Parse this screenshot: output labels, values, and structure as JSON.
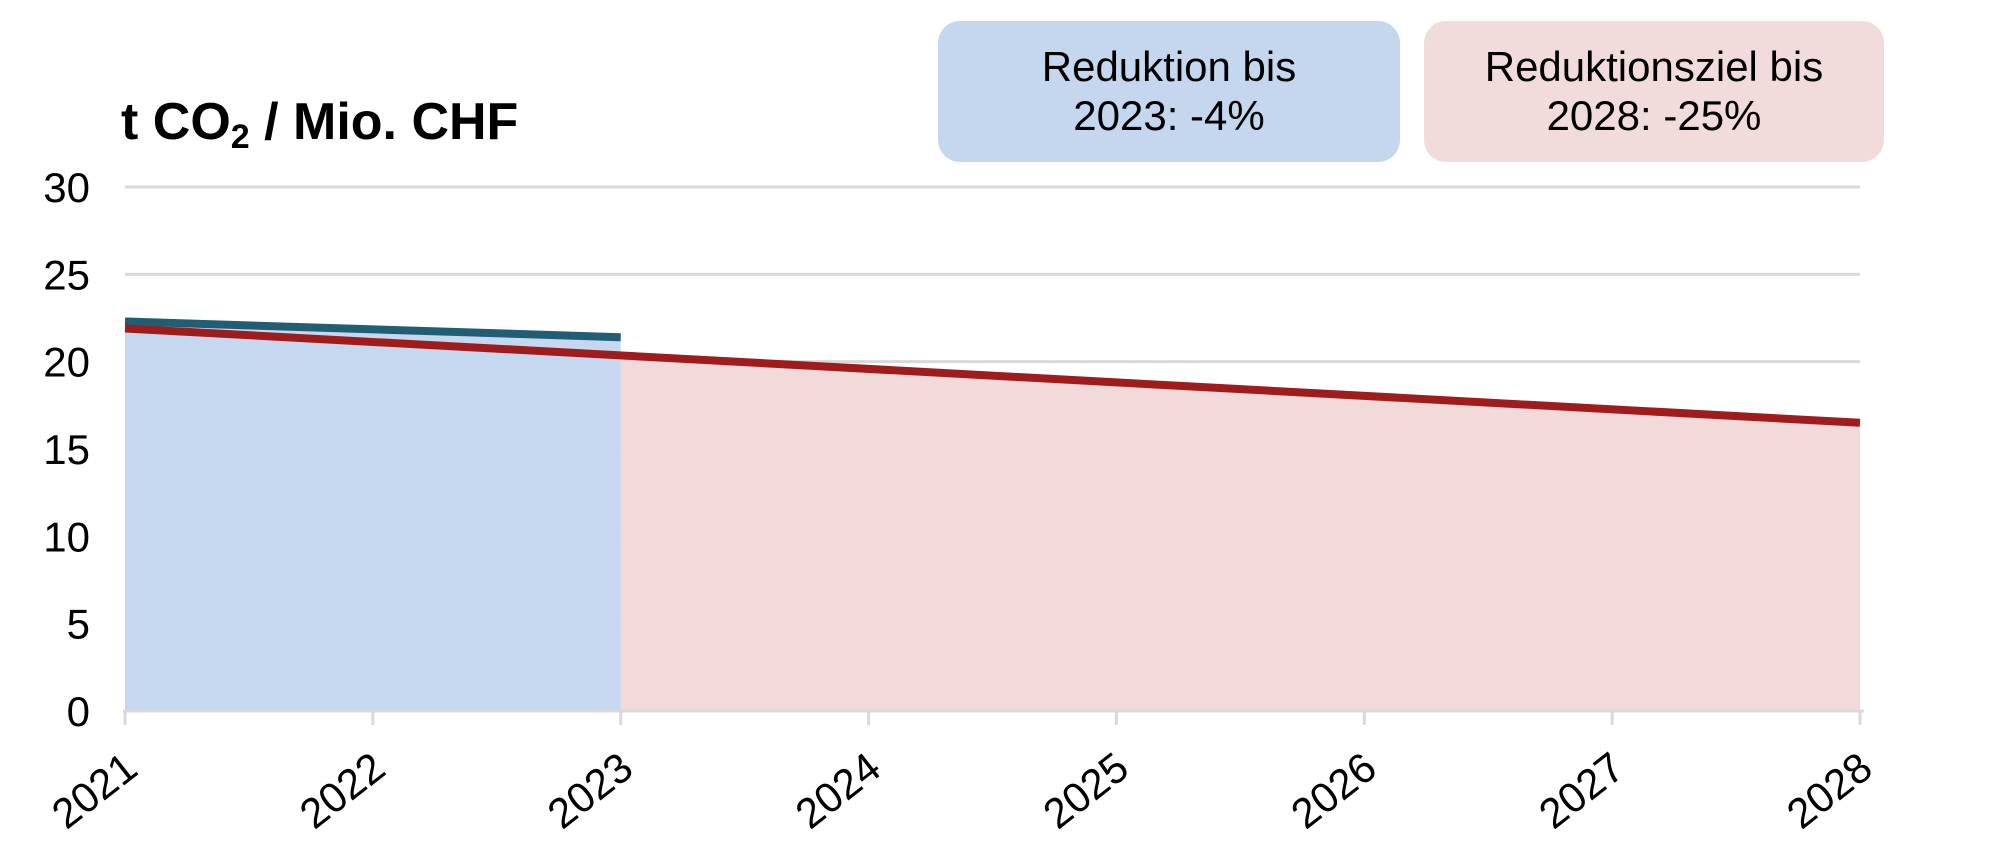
{
  "page": {
    "background": "#ffffff"
  },
  "title": {
    "text_main": "t CO",
    "subscript": "2",
    "text_rest": " / Mio. CHF"
  },
  "badges": [
    {
      "id": "reduction-2023",
      "line1": "Reduktion bis",
      "line2": "2023: -4%",
      "bg_color": "#c4d7ee"
    },
    {
      "id": "target-2028",
      "line1": "Reduktionsziel bis",
      "line2": "2028: -25%",
      "bg_color": "#f1dbdb"
    }
  ],
  "chart_data": {
    "type": "area",
    "title": "t CO2 / Mio. CHF",
    "xlabel": "",
    "ylabel": "t CO2 / Mio. CHF",
    "x_ticks": [
      2021,
      2022,
      2023,
      2024,
      2025,
      2026,
      2027,
      2028
    ],
    "y_ticks": [
      0,
      5,
      10,
      15,
      20,
      25,
      30
    ],
    "xlim": [
      2021,
      2028
    ],
    "ylim": [
      0,
      30
    ],
    "grid": true,
    "grid_color": "#d9d9d9",
    "axis_color": "#d9d9d9",
    "tick_label_color": "#000000",
    "x_label_rotation_deg": -38,
    "series": [
      {
        "name": "Reduktion bis 2023: -4%",
        "x": [
          2021,
          2023
        ],
        "values": [
          22.3,
          21.4
        ],
        "line_color": "#215e74",
        "fill_color": "#c5d8ef",
        "fill_range": [
          2021,
          2023
        ],
        "line_width": 8
      },
      {
        "name": "Reduktionsziel bis 2028: -25%",
        "x": [
          2021,
          2028
        ],
        "values": [
          21.9,
          16.5
        ],
        "line_color": "#9e1c1c",
        "fill_color": "#f2dadb",
        "fill_range": [
          2023,
          2028
        ],
        "line_width": 8
      }
    ],
    "annotations": [
      "Reduktion bis 2023: -4%",
      "Reduktionsziel bis 2028: -25%"
    ],
    "legend_position": "top-right"
  }
}
